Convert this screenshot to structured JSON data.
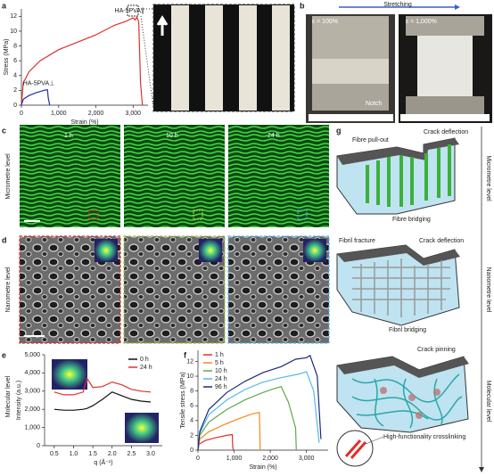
{
  "panel_letters": [
    "a",
    "b",
    "c",
    "d",
    "e",
    "f",
    "g"
  ],
  "panel_b": {
    "stretching": "Stretching",
    "left_label": "ε = 100%",
    "right_label": "ε = 1,000%",
    "notch": "Notch"
  },
  "panel_c": {
    "times": [
      "1 h",
      "10 h",
      "24 h"
    ]
  },
  "row_labels": [
    "Micrometre level",
    "Nanometre level",
    "Molecular level"
  ],
  "panel_g": {
    "micrometre": [
      "Fibre pull-out",
      "Crack deflection",
      "Fibre bridging"
    ],
    "nanometre": [
      "Fibril fracture",
      "Crack deflection",
      "Fibril bridging"
    ],
    "molecular": [
      "Crack pinning",
      "High-functionality crosslinking"
    ],
    "axis_labels": [
      "Micrometre level",
      "Nanometre level",
      "Molecular level"
    ]
  },
  "chart_data": [
    {
      "type": "line",
      "x_label": "Strain (%)",
      "y_label": "Stress (MPa)",
      "legend": "inline",
      "xlim": [
        0,
        3400
      ],
      "ylim": [
        0,
        13
      ],
      "xticks": [
        0,
        {
          "value": 1000,
          "label": "1,000"
        },
        {
          "value": 2000,
          "label": "2,000"
        },
        {
          "value": 3000,
          "label": "3,000"
        }
      ],
      "yticks": [
        0,
        2,
        4,
        6,
        8,
        10,
        12
      ],
      "series": [
        {
          "name": "HA-5PVA∥",
          "color": "#e0302a",
          "x": [
            0,
            50,
            200,
            500,
            1000,
            1500,
            2000,
            2500,
            2800,
            3000,
            3050,
            3100,
            3150,
            3200,
            3250
          ],
          "values": [
            0,
            3,
            4.5,
            6,
            7.5,
            8.5,
            9.5,
            10.8,
            11.3,
            11.8,
            11.5,
            11.9,
            11.2,
            3,
            0
          ]
        },
        {
          "name": "HA-5PVA⊥",
          "color": "#2030a8",
          "x": [
            0,
            50,
            200,
            400,
            600,
            700,
            720,
            760
          ],
          "values": [
            0,
            0.8,
            1.3,
            1.7,
            2,
            2.1,
            1,
            0
          ]
        }
      ]
    },
    {
      "type": "line",
      "x_label": "q (Å⁻¹)",
      "y_label": "Intensity (a.u.)",
      "legend": "upper right",
      "xlim": [
        0.25,
        3.3
      ],
      "ylim": [
        0,
        5000
      ],
      "xticks": [
        0.5,
        {
          "value": 1,
          "label": "1.0"
        },
        1.5,
        {
          "value": 2,
          "label": "2.0"
        },
        2.5,
        {
          "value": 3,
          "label": "3.0"
        }
      ],
      "yticks": [
        0,
        {
          "value": 1000,
          "label": "1,000"
        },
        {
          "value": 2000,
          "label": "2,000"
        },
        {
          "value": 3000,
          "label": "3,000"
        },
        {
          "value": 4000,
          "label": "4,000"
        },
        {
          "value": 5000,
          "label": "5,000"
        }
      ],
      "series": [
        {
          "name": "0 h",
          "color": "#111111",
          "x": [
            0.5,
            0.75,
            1,
            1.25,
            1.35,
            1.5,
            1.75,
            2,
            2.25,
            2.5,
            2.75,
            3
          ],
          "values": [
            2000,
            1950,
            1950,
            2000,
            2050,
            2200,
            2550,
            2950,
            2750,
            2550,
            2450,
            2400
          ]
        },
        {
          "name": "24 h",
          "color": "#e0302a",
          "x": [
            0.5,
            0.75,
            1,
            1.25,
            1.35,
            1.5,
            1.75,
            2,
            2.25,
            2.5,
            2.75,
            3
          ],
          "values": [
            2950,
            2800,
            2800,
            2950,
            3700,
            3200,
            3250,
            3500,
            3350,
            3100,
            3000,
            2950
          ]
        }
      ]
    },
    {
      "type": "line",
      "x_label": "Strain (%)",
      "y_label": "Tensile stress (MPa)",
      "legend": "upper left",
      "xlim": [
        0,
        3600
      ],
      "ylim": [
        0,
        13.5
      ],
      "xticks": [
        0,
        {
          "value": 1000,
          "label": "1,000"
        },
        {
          "value": 2000,
          "label": "2,000"
        },
        {
          "value": 3000,
          "label": "3,000"
        }
      ],
      "yticks": [
        0,
        2,
        4,
        6,
        8,
        10,
        12
      ],
      "series": [
        {
          "name": "1 h",
          "color": "#e0302a",
          "x": [
            0,
            30,
            200,
            500,
            800,
            950,
            960,
            980
          ],
          "values": [
            0,
            0.8,
            1.3,
            1.7,
            2,
            2.1,
            0.5,
            0
          ]
        },
        {
          "name": "5 h",
          "color": "#f08a1c",
          "x": [
            0,
            50,
            300,
            700,
            1100,
            1500,
            1700,
            1720
          ],
          "values": [
            0,
            1.5,
            2.5,
            3.4,
            4.2,
            4.9,
            5.1,
            0
          ]
        },
        {
          "name": "10 h",
          "color": "#5fa84a",
          "x": [
            0,
            50,
            300,
            800,
            1300,
            1800,
            2100,
            2300,
            2500,
            2700,
            2720
          ],
          "values": [
            0,
            2,
            3.8,
            5.5,
            6.8,
            7.8,
            8.3,
            8.6,
            6.5,
            3,
            0
          ]
        },
        {
          "name": "24 h",
          "color": "#55b8e8",
          "x": [
            0,
            50,
            300,
            800,
            1300,
            1800,
            2300,
            2800,
            3000,
            3200,
            3350
          ],
          "values": [
            0,
            2.3,
            4.8,
            6.8,
            8.2,
            9.2,
            9.8,
            10.3,
            10.6,
            8,
            1
          ]
        },
        {
          "name": "96 h",
          "color": "#1a2a7a",
          "x": [
            0,
            50,
            300,
            800,
            1300,
            1800,
            2300,
            2700,
            3000,
            3100,
            3300,
            3400
          ],
          "values": [
            0,
            2.5,
            5.5,
            7.8,
            9.3,
            10.5,
            11.3,
            12.3,
            12.5,
            12.8,
            10,
            1.5
          ]
        }
      ]
    }
  ]
}
